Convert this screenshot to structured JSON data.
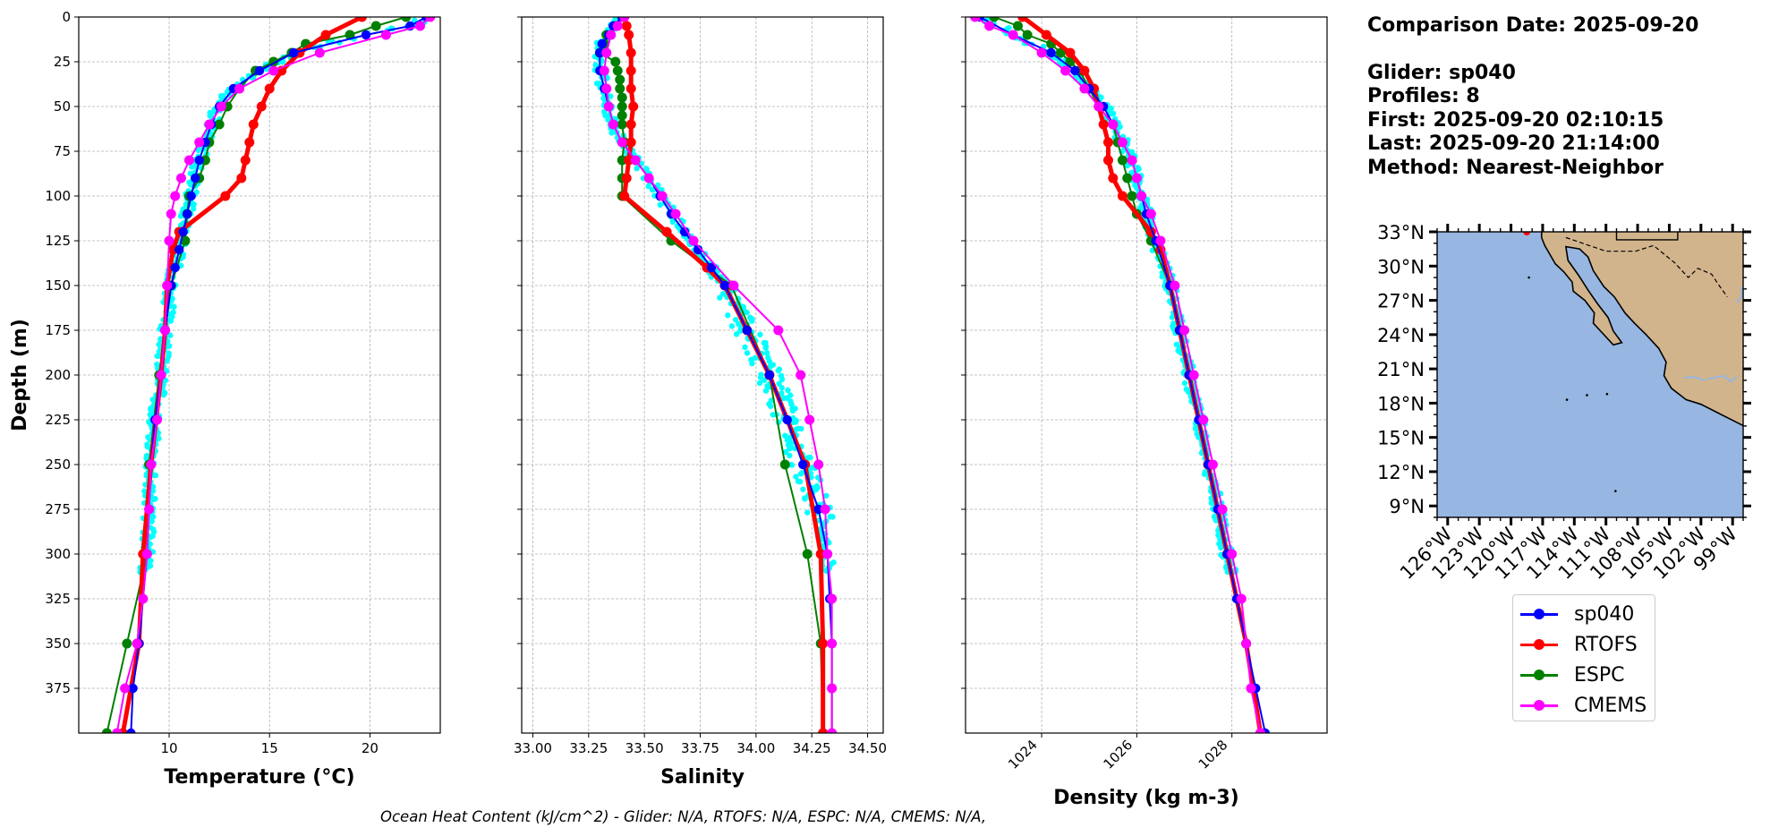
{
  "chart_data": [
    {
      "type": "line",
      "xlabel": "Temperature (°C)",
      "ylabel": "Depth (m)",
      "xlim": [
        5.5,
        23.5
      ],
      "ylim": [
        400,
        0
      ],
      "xticks": [
        10,
        15,
        20
      ],
      "yticks": [
        0,
        25,
        50,
        75,
        100,
        125,
        150,
        175,
        200,
        225,
        250,
        275,
        300,
        325,
        350,
        375
      ],
      "grid": true,
      "series": [
        {
          "name": "sp040",
          "color": "#0000ff",
          "marker": "o",
          "depth": [
            0,
            5,
            10,
            20,
            30,
            40,
            50,
            60,
            70,
            80,
            90,
            100,
            110,
            120,
            130,
            140,
            150,
            175,
            200,
            225,
            250,
            275,
            300,
            325,
            350,
            375,
            400
          ],
          "values": [
            22.8,
            22.0,
            19.8,
            16.2,
            14.5,
            13.2,
            12.5,
            12.1,
            11.8,
            11.5,
            11.3,
            11.1,
            10.9,
            10.7,
            10.5,
            10.3,
            10.1,
            9.8,
            9.6,
            9.3,
            9.1,
            9.0,
            8.9,
            8.7,
            8.5,
            8.2,
            8.1
          ]
        },
        {
          "name": "RTOFS",
          "color": "#ff0000",
          "marker": "o",
          "depth": [
            0,
            10,
            20,
            30,
            40,
            50,
            60,
            70,
            80,
            90,
            100,
            120,
            130,
            150,
            175,
            200,
            250,
            300,
            350,
            400
          ],
          "values": [
            19.6,
            17.8,
            16.5,
            15.6,
            15.0,
            14.6,
            14.2,
            14.0,
            13.8,
            13.6,
            12.8,
            10.5,
            10.2,
            9.9,
            9.8,
            9.6,
            9.1,
            8.7,
            8.5,
            7.7
          ]
        },
        {
          "name": "ESPC",
          "color": "#008000",
          "marker": "o",
          "depth": [
            0,
            5,
            10,
            15,
            20,
            25,
            30,
            40,
            50,
            60,
            70,
            80,
            90,
            100,
            110,
            125,
            150,
            200,
            250,
            300,
            350,
            400
          ],
          "values": [
            21.8,
            20.3,
            19.0,
            16.8,
            16.1,
            15.2,
            14.3,
            13.5,
            12.9,
            12.5,
            12.0,
            11.8,
            11.5,
            11.0,
            10.9,
            10.8,
            10.1,
            9.5,
            9.0,
            8.9,
            7.9,
            6.9
          ]
        },
        {
          "name": "CMEMS",
          "color": "#ff00ff",
          "marker": "o",
          "depth": [
            0,
            5,
            10,
            20,
            30,
            40,
            50,
            60,
            70,
            80,
            90,
            100,
            110,
            125,
            150,
            175,
            200,
            225,
            250,
            275,
            300,
            325,
            350,
            375,
            400
          ],
          "values": [
            23.0,
            22.5,
            20.8,
            17.5,
            15.2,
            13.5,
            12.6,
            12.0,
            11.5,
            11.0,
            10.6,
            10.3,
            10.1,
            10.0,
            9.9,
            9.8,
            9.6,
            9.4,
            9.1,
            9.0,
            8.9,
            8.7,
            8.4,
            7.8,
            7.4
          ]
        }
      ]
    },
    {
      "type": "line",
      "xlabel": "Salinity",
      "ylabel": "",
      "xlim": [
        32.95,
        34.57
      ],
      "ylim": [
        400,
        0
      ],
      "xticks": [
        "33.00",
        "33.25",
        "33.50",
        "33.75",
        "34.00",
        "34.25",
        "34.50"
      ],
      "yticks": [
        0,
        25,
        50,
        75,
        100,
        125,
        150,
        175,
        200,
        225,
        250,
        275,
        300,
        325,
        350,
        375
      ],
      "grid": true,
      "series": [
        {
          "name": "sp040",
          "color": "#0000ff",
          "marker": "o",
          "depth": [
            0,
            5,
            10,
            15,
            20,
            30,
            40,
            50,
            60,
            70,
            80,
            90,
            100,
            110,
            120,
            130,
            140,
            150,
            175,
            200,
            225,
            250,
            275,
            300,
            325,
            350,
            375,
            400
          ],
          "values": [
            33.4,
            33.36,
            33.34,
            33.31,
            33.3,
            33.3,
            33.32,
            33.34,
            33.36,
            33.4,
            33.46,
            33.52,
            33.57,
            33.62,
            33.68,
            33.74,
            33.8,
            33.86,
            33.96,
            34.06,
            34.14,
            34.21,
            34.28,
            34.32,
            34.33,
            34.34,
            34.34,
            34.34
          ]
        },
        {
          "name": "RTOFS",
          "color": "#ff0000",
          "marker": "o",
          "depth": [
            0,
            5,
            10,
            20,
            30,
            40,
            50,
            60,
            70,
            80,
            90,
            100,
            120,
            140,
            150,
            175,
            200,
            250,
            300,
            350,
            400
          ],
          "values": [
            33.41,
            33.42,
            33.43,
            33.44,
            33.44,
            33.44,
            33.45,
            33.44,
            33.44,
            33.43,
            33.42,
            33.41,
            33.6,
            33.78,
            33.86,
            33.96,
            34.06,
            34.22,
            34.29,
            34.3,
            34.3
          ]
        },
        {
          "name": "ESPC",
          "color": "#008000",
          "marker": "o",
          "depth": [
            0,
            5,
            10,
            15,
            20,
            25,
            30,
            35,
            40,
            45,
            50,
            55,
            60,
            70,
            80,
            90,
            100,
            125,
            150,
            200,
            250,
            300,
            350,
            400
          ],
          "values": [
            33.4,
            33.37,
            33.33,
            33.32,
            33.3,
            33.37,
            33.38,
            33.39,
            33.39,
            33.4,
            33.4,
            33.4,
            33.4,
            33.41,
            33.4,
            33.4,
            33.4,
            33.62,
            33.89,
            34.06,
            34.13,
            34.23,
            34.29,
            34.3
          ]
        },
        {
          "name": "CMEMS",
          "color": "#ff00ff",
          "marker": "o",
          "depth": [
            0,
            5,
            10,
            20,
            30,
            40,
            50,
            60,
            70,
            80,
            90,
            100,
            110,
            125,
            150,
            175,
            200,
            225,
            250,
            275,
            300,
            325,
            350,
            375,
            400
          ],
          "values": [
            33.41,
            33.38,
            33.35,
            33.33,
            33.32,
            33.33,
            33.34,
            33.36,
            33.4,
            33.46,
            33.52,
            33.58,
            33.64,
            33.72,
            33.9,
            34.1,
            34.2,
            34.24,
            34.28,
            34.31,
            34.32,
            34.34,
            34.34,
            34.34,
            34.34
          ]
        }
      ]
    },
    {
      "type": "line",
      "xlabel": "Density (kg m-3)",
      "ylabel": "",
      "xlim": [
        1022.4,
        1030.0
      ],
      "ylim": [
        400,
        0
      ],
      "xticks": [
        1024,
        1026,
        1028
      ],
      "yticks": [
        0,
        25,
        50,
        75,
        100,
        125,
        150,
        175,
        200,
        225,
        250,
        275,
        300,
        325,
        350,
        375
      ],
      "grid": true,
      "series": [
        {
          "name": "sp040",
          "color": "#0000ff",
          "marker": "o",
          "depth": [
            0,
            10,
            20,
            30,
            40,
            50,
            60,
            70,
            80,
            90,
            100,
            110,
            125,
            150,
            175,
            200,
            225,
            250,
            275,
            300,
            325,
            350,
            375,
            400
          ],
          "values": [
            1022.7,
            1023.4,
            1024.2,
            1024.7,
            1025.0,
            1025.3,
            1025.5,
            1025.7,
            1025.9,
            1026.0,
            1026.1,
            1026.2,
            1026.4,
            1026.7,
            1026.9,
            1027.1,
            1027.3,
            1027.5,
            1027.7,
            1027.9,
            1028.1,
            1028.3,
            1028.5,
            1028.7
          ]
        },
        {
          "name": "RTOFS",
          "color": "#ff0000",
          "marker": "o",
          "depth": [
            0,
            10,
            20,
            30,
            40,
            50,
            60,
            70,
            80,
            90,
            100,
            120,
            130,
            150,
            175,
            200,
            250,
            300,
            350,
            400
          ],
          "values": [
            1023.6,
            1024.1,
            1024.6,
            1024.9,
            1025.1,
            1025.2,
            1025.3,
            1025.4,
            1025.4,
            1025.5,
            1025.7,
            1026.3,
            1026.5,
            1026.7,
            1026.9,
            1027.1,
            1027.5,
            1027.9,
            1028.3,
            1028.6
          ]
        },
        {
          "name": "ESPC",
          "color": "#008000",
          "marker": "o",
          "depth": [
            0,
            5,
            10,
            15,
            20,
            25,
            30,
            40,
            50,
            60,
            70,
            80,
            90,
            100,
            110,
            125,
            150,
            200,
            250,
            300,
            350,
            400
          ],
          "values": [
            1023.0,
            1023.5,
            1023.7,
            1024.2,
            1024.4,
            1024.6,
            1024.8,
            1025.0,
            1025.2,
            1025.5,
            1025.6,
            1025.7,
            1025.8,
            1025.9,
            1026.0,
            1026.3,
            1026.7,
            1027.1,
            1027.5,
            1027.9,
            1028.3,
            1028.6
          ]
        },
        {
          "name": "CMEMS",
          "color": "#ff00ff",
          "marker": "o",
          "depth": [
            0,
            5,
            10,
            20,
            30,
            40,
            50,
            60,
            70,
            80,
            90,
            100,
            110,
            125,
            150,
            175,
            200,
            225,
            250,
            275,
            300,
            325,
            350,
            375,
            400
          ],
          "values": [
            1022.6,
            1022.9,
            1023.4,
            1024.0,
            1024.5,
            1024.9,
            1025.2,
            1025.5,
            1025.7,
            1025.9,
            1026.0,
            1026.1,
            1026.3,
            1026.5,
            1026.8,
            1027.0,
            1027.2,
            1027.4,
            1027.6,
            1027.8,
            1028.0,
            1028.2,
            1028.3,
            1028.4,
            1028.6
          ]
        }
      ],
      "scatter": {
        "name": "glider observations",
        "color": "#00ffff"
      }
    },
    {
      "type": "map",
      "lat_ticks": [
        "33°N",
        "30°N",
        "27°N",
        "24°N",
        "21°N",
        "18°N",
        "15°N",
        "12°N",
        "9°N"
      ],
      "lon_ticks": [
        "126°W",
        "123°W",
        "120°W",
        "117°W",
        "114°W",
        "111°W",
        "108°W",
        "105°W",
        "102°W",
        "99°W"
      ],
      "lat_range": [
        8,
        33
      ],
      "lon_range": [
        -127,
        -98
      ],
      "ocean_color": "#97b6e1",
      "land_color": "#d2b48c",
      "glider_position": {
        "lat": 33.0,
        "lon": -118.5,
        "color": "#ff0000"
      }
    }
  ],
  "info": {
    "comparison_date": "Comparison Date: 2025-09-20",
    "glider": "Glider: sp040",
    "profiles": "Profiles: 8",
    "first": "First: 2025-09-20 02:10:15",
    "last": "Last: 2025-09-20 21:14:00",
    "method": "Method: Nearest-Neighbor"
  },
  "legend": [
    {
      "label": "sp040",
      "color": "#0000ff"
    },
    {
      "label": "RTOFS",
      "color": "#ff0000"
    },
    {
      "label": "ESPC",
      "color": "#008000"
    },
    {
      "label": "CMEMS",
      "color": "#ff00ff"
    }
  ],
  "footer": "Ocean Heat Content (kJ/cm^2) - Glider: N/A,  RTOFS: N/A,  ESPC: N/A,  CMEMS: N/A,"
}
